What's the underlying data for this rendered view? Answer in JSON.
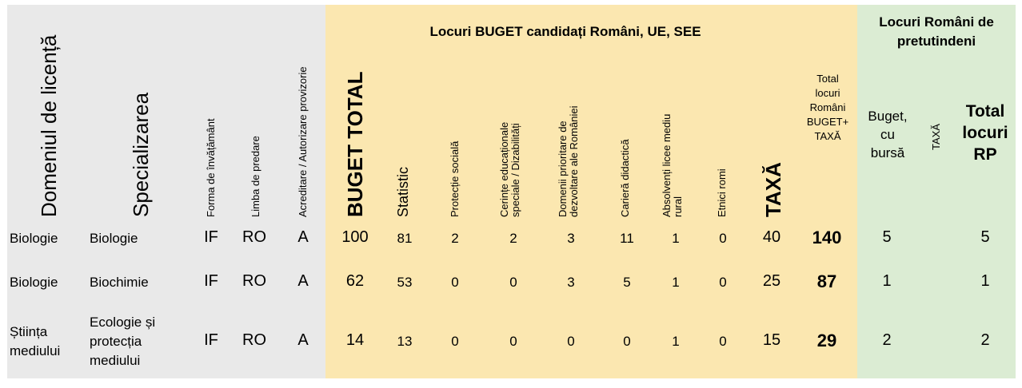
{
  "headers": {
    "domeniu": "Domeniul de licență",
    "specializare": "Specializarea",
    "forma": "Forma de învățământ",
    "limba": "Limba de predare",
    "acreditare": "Acreditare / Autorizare provizorie",
    "buget_group": "Locuri BUGET candidați Români, UE, SEE",
    "buget_total": "BUGET TOTAL",
    "statistic": "Statistic",
    "protectie": "Protecție socială",
    "cerinte_l1": "Cerințe educaționale",
    "cerinte_l2": "speciale / Dizabilități",
    "domenii_l1": "Domenii prioritare de",
    "domenii_l2": "dezvoltare ale României",
    "cariera": "Carieră didactică",
    "absolventi_l1": "Absolvenți licee mediu",
    "absolventi_l2": "rural",
    "etnici": "Etnici romi",
    "taxa": "TAXĂ",
    "total_l1": "Total",
    "total_l2": "locuri",
    "total_l3": "Români",
    "total_l4": "BUGET+",
    "total_l5": "TAXĂ",
    "rp_group_l1": "Locuri Români de",
    "rp_group_l2": "pretutindeni",
    "rp_buget_l1": "Buget,",
    "rp_buget_l2": "cu",
    "rp_buget_l3": "bursă",
    "rp_taxa": "TAXĂ",
    "rp_total_l1": "Total",
    "rp_total_l2": "locuri",
    "rp_total_l3": "RP"
  },
  "rows": [
    {
      "domeniu": [
        "Biologie"
      ],
      "specializare": [
        "Biologie"
      ],
      "forma": "IF",
      "limba": "RO",
      "acreditare": "A",
      "buget_total": "100",
      "statistic": "81",
      "protectie": "2",
      "cerinte": "2",
      "domenii": "3",
      "cariera": "11",
      "absolventi": "1",
      "etnici": "0",
      "taxa": "40",
      "total": "140",
      "rp_buget": "5",
      "rp_total": "5"
    },
    {
      "domeniu": [
        "Biologie"
      ],
      "specializare": [
        "Biochimie"
      ],
      "forma": "IF",
      "limba": "RO",
      "acreditare": "A",
      "buget_total": "62",
      "statistic": "53",
      "protectie": "0",
      "cerinte": "0",
      "domenii": "3",
      "cariera": "5",
      "absolventi": "1",
      "etnici": "0",
      "taxa": "25",
      "total": "87",
      "rp_buget": "1",
      "rp_total": "1"
    },
    {
      "domeniu": [
        "Știința",
        "mediului"
      ],
      "specializare": [
        "Ecologie și",
        "protecția",
        "mediului"
      ],
      "forma": "IF",
      "limba": "RO",
      "acreditare": "A",
      "buget_total": "14",
      "statistic": "13",
      "protectie": "0",
      "cerinte": "0",
      "domenii": "0",
      "cariera": "0",
      "absolventi": "1",
      "etnici": "0",
      "taxa": "15",
      "total": "29",
      "rp_buget": "2",
      "rp_total": "2"
    }
  ]
}
